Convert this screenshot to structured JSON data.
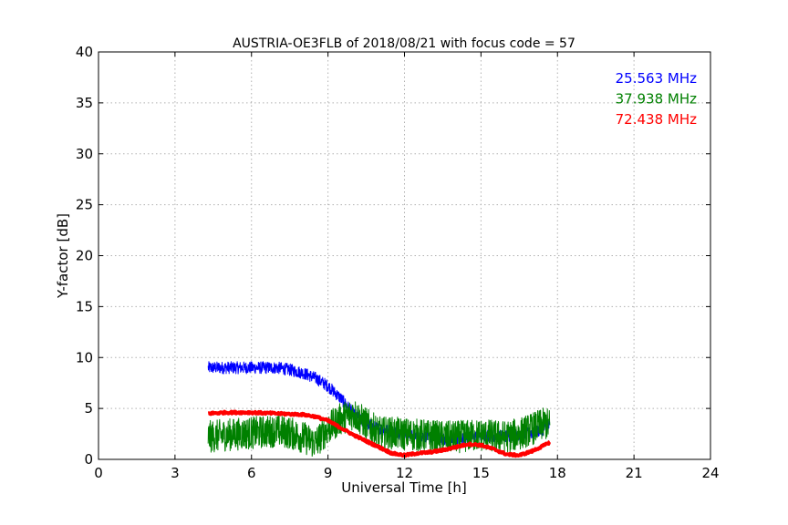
{
  "chart_data": {
    "type": "line",
    "title": "AUSTRIA-OE3FLB of 2018/08/21 with focus code = 57",
    "xlabel": "Universal Time [h]",
    "ylabel": "Y-factor [dB]",
    "xlim": [
      0,
      24
    ],
    "ylim": [
      0,
      40
    ],
    "xticks": [
      0,
      3,
      6,
      9,
      12,
      15,
      18,
      21,
      24
    ],
    "yticks": [
      0,
      5,
      10,
      15,
      20,
      25,
      30,
      35,
      40
    ],
    "grid": true,
    "legend_position": "top-right",
    "series": [
      {
        "name": "25.563 MHz",
        "color": "#0000ff",
        "noise": 0.6,
        "x": [
          4.3,
          5.0,
          6.0,
          7.0,
          7.5,
          8.0,
          8.5,
          9.0,
          9.5,
          10.0,
          10.5,
          11.0,
          11.5,
          12.0,
          12.5,
          13.0,
          13.5,
          14.0,
          14.5,
          15.0,
          15.5,
          16.0,
          16.5,
          17.0,
          17.5,
          17.7
        ],
        "y": [
          9.0,
          9.0,
          9.0,
          9.0,
          8.8,
          8.5,
          8.0,
          7.2,
          6.0,
          4.5,
          3.5,
          3.0,
          2.8,
          2.5,
          2.3,
          2.2,
          2.0,
          2.0,
          2.2,
          2.3,
          2.3,
          2.3,
          2.4,
          2.6,
          3.0,
          3.3
        ]
      },
      {
        "name": "37.938 MHz",
        "color": "#008000",
        "noise": 1.6,
        "x": [
          4.3,
          5.0,
          6.0,
          7.0,
          7.5,
          8.0,
          8.5,
          9.0,
          9.5,
          10.0,
          10.5,
          11.0,
          11.5,
          12.0,
          12.5,
          13.0,
          13.5,
          14.0,
          14.5,
          15.0,
          15.5,
          16.0,
          16.5,
          17.0,
          17.5,
          17.7
        ],
        "y": [
          2.2,
          2.4,
          2.6,
          2.8,
          2.6,
          2.2,
          1.6,
          3.0,
          4.0,
          4.5,
          3.5,
          2.6,
          2.6,
          2.5,
          2.4,
          2.3,
          2.2,
          2.2,
          2.3,
          2.4,
          2.3,
          2.2,
          2.5,
          3.0,
          3.5,
          3.4
        ]
      },
      {
        "name": "72.438 MHz",
        "color": "#ff0000",
        "noise": 0.1,
        "x": [
          4.3,
          5.0,
          6.0,
          7.0,
          8.0,
          8.5,
          9.0,
          9.5,
          10.0,
          10.5,
          11.0,
          11.5,
          12.0,
          12.5,
          13.0,
          13.5,
          14.0,
          14.5,
          15.0,
          15.5,
          16.0,
          16.5,
          17.0,
          17.5,
          17.7
        ],
        "y": [
          4.5,
          4.6,
          4.6,
          4.5,
          4.4,
          4.2,
          3.8,
          3.1,
          2.4,
          1.8,
          1.2,
          0.6,
          0.4,
          0.6,
          0.7,
          0.9,
          1.2,
          1.5,
          1.4,
          1.0,
          0.5,
          0.4,
          0.8,
          1.4,
          1.7
        ]
      }
    ]
  }
}
